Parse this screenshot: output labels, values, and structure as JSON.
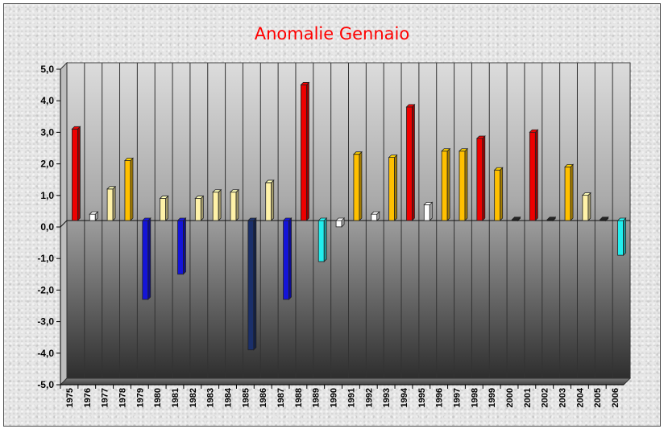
{
  "chart_data": {
    "type": "bar",
    "title": "Anomalie Gennaio",
    "xlabel": "",
    "ylabel": "",
    "ylim": [
      -5.0,
      5.0
    ],
    "yticks": [
      "5,0",
      "4,0",
      "3,0",
      "2,0",
      "1,0",
      "0,0",
      "-1,0",
      "-2,0",
      "-3,0",
      "-4,0",
      "-5,0"
    ],
    "grid": "vertical",
    "legend": "none",
    "categories": [
      "1975",
      "1976",
      "1977",
      "1978",
      "1979",
      "1980",
      "1981",
      "1982",
      "1983",
      "1984",
      "1985",
      "1986",
      "1987",
      "1988",
      "1989",
      "1990",
      "1991",
      "1992",
      "1993",
      "1994",
      "1995",
      "1996",
      "1997",
      "1998",
      "1999",
      "2000",
      "2001",
      "2002",
      "2003",
      "2004",
      "2005",
      "2006"
    ],
    "values": [
      2.9,
      0.2,
      1.0,
      1.9,
      -2.5,
      0.7,
      -1.7,
      0.7,
      0.9,
      0.9,
      -4.1,
      1.2,
      -2.5,
      4.3,
      -1.3,
      -0.2,
      2.1,
      0.2,
      2.0,
      3.6,
      0.5,
      2.2,
      2.2,
      2.6,
      1.6,
      0.03,
      2.8,
      0.03,
      1.7,
      0.8,
      0.03,
      -1.1
    ],
    "bar_colors": [
      "#ee0000",
      "#ffffff",
      "#fff2a8",
      "#ffc000",
      "#1414d8",
      "#fff2a8",
      "#1414d8",
      "#fff2a8",
      "#fff2a8",
      "#fff2a8",
      "#1a2f6a",
      "#fff2a8",
      "#1414d8",
      "#ee0000",
      "#22eeee",
      "#ffffff",
      "#ffc000",
      "#ffffff",
      "#ffc000",
      "#ee0000",
      "#ffffff",
      "#ffc000",
      "#ffc000",
      "#ee0000",
      "#ffc000",
      "#222222",
      "#ee0000",
      "#222222",
      "#ffc000",
      "#fff2a8",
      "#222222",
      "#22eeee"
    ]
  }
}
